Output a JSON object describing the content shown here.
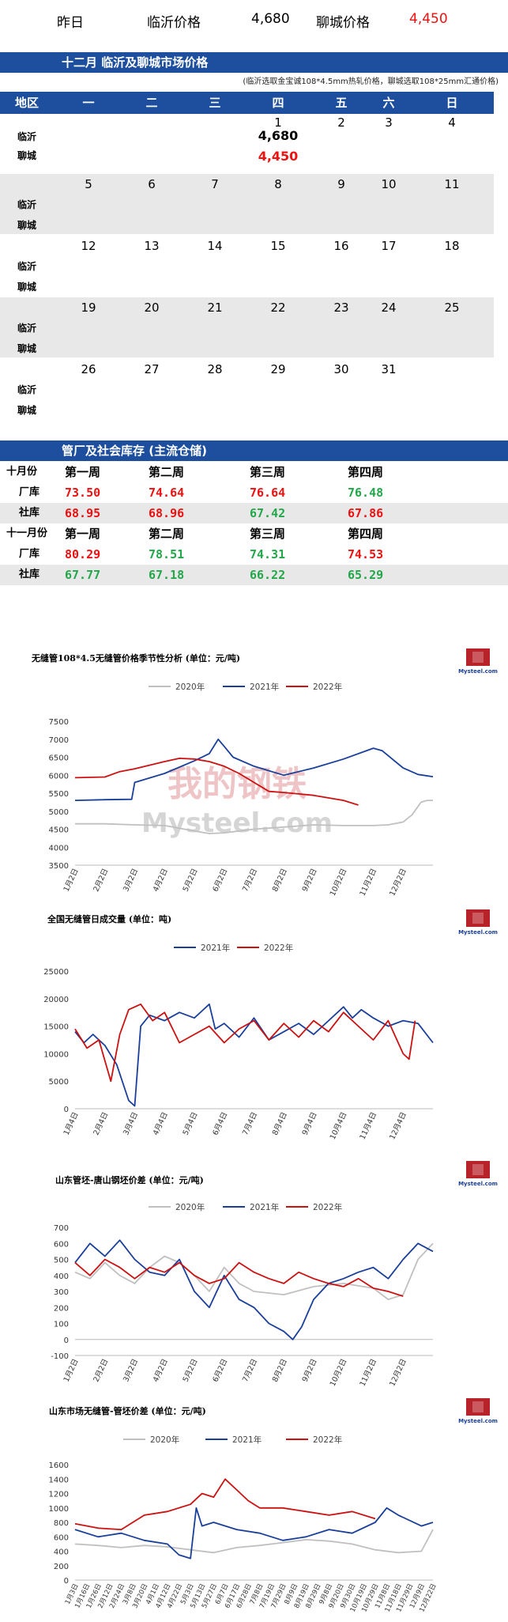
{
  "summary": {
    "yesterday_label": "昨日",
    "linyi_label": "临沂价格",
    "linyi_value": "4,680",
    "liaocheng_label": "聊城价格",
    "liaocheng_value": "4,450"
  },
  "calendar": {
    "title": "十二月  临沂及聊城市场价格",
    "note": "(临沂选取金宝诚108*4.5mm热轧价格，聊城选取108*25mm汇通价格)",
    "headers": [
      "地区",
      "一",
      "二",
      "三",
      "四",
      "五",
      "六",
      "日"
    ],
    "row_labels": [
      "临沂",
      "聊城"
    ],
    "weeks": [
      [
        "",
        "",
        "",
        "1",
        "2",
        "3",
        "4"
      ],
      [
        "5",
        "6",
        "7",
        "8",
        "9",
        "10",
        "11"
      ],
      [
        "12",
        "13",
        "14",
        "15",
        "16",
        "17",
        "18"
      ],
      [
        "19",
        "20",
        "21",
        "22",
        "23",
        "24",
        "25"
      ],
      [
        "26",
        "27",
        "28",
        "29",
        "30",
        "31",
        ""
      ]
    ],
    "prices": {
      "linyi_day1": "4,680",
      "liaocheng_day1": "4,450"
    }
  },
  "inventory": {
    "title": "管厂及社会库存 (主流仓储)",
    "rows": [
      {
        "label": "十月份",
        "cells": [
          "第一周",
          "第二周",
          "第三周",
          "第四周"
        ],
        "kind": "header"
      },
      {
        "label": "厂库",
        "cells": [
          "73.50",
          "74.64",
          "76.64",
          "76.48"
        ],
        "colors": [
          "red",
          "red",
          "red",
          "green"
        ]
      },
      {
        "label": "社库",
        "cells": [
          "68.95",
          "68.96",
          "67.42",
          "67.86"
        ],
        "colors": [
          "red",
          "red",
          "green",
          "red"
        ]
      },
      {
        "label": "十一月份",
        "cells": [
          "第一周",
          "第二周",
          "第三周",
          "第四周"
        ],
        "kind": "header"
      },
      {
        "label": "厂库",
        "cells": [
          "80.29",
          "78.51",
          "74.31",
          "74.53"
        ],
        "colors": [
          "red",
          "green",
          "green",
          "red"
        ]
      },
      {
        "label": "社库",
        "cells": [
          "67.77",
          "67.18",
          "66.22",
          "65.29"
        ],
        "colors": [
          "green",
          "green",
          "green",
          "green"
        ]
      }
    ]
  },
  "logo_text": "Mysteel.com",
  "watermark": {
    "cn": "我的钢铁",
    "en": "Mysteel.com"
  },
  "chart_data": [
    {
      "type": "line",
      "title": "无缝管108*4.5无缝管价格季节性分析 (单位：元/吨)",
      "ylim": [
        3500,
        7500
      ],
      "yticks": [
        3500,
        4000,
        4500,
        5000,
        5500,
        6000,
        6500,
        7000,
        7500
      ],
      "tick_labels": [
        "1月2日",
        "2月2日",
        "3月2日",
        "4月2日",
        "5月2日",
        "6月2日",
        "7月2日",
        "8月2日",
        "9月2日",
        "10月2日",
        "11月2日",
        "12月2日"
      ],
      "series": [
        {
          "name": "2020年",
          "color": "#c0c0c0",
          "x": [
            0,
            1,
            2,
            3,
            4,
            4.5,
            5,
            5.5,
            6,
            7,
            8,
            9,
            10,
            10.5,
            11,
            11.3,
            11.6,
            11.8,
            12
          ],
          "y": [
            4650,
            4650,
            4620,
            4600,
            4450,
            4380,
            4400,
            4450,
            4500,
            4560,
            4620,
            4600,
            4600,
            4620,
            4700,
            4900,
            5250,
            5300,
            5300
          ]
        },
        {
          "name": "2021年",
          "color": "#1a3f9a",
          "x": [
            0,
            1,
            1.9,
            2,
            3,
            4,
            4.5,
            4.8,
            5,
            5.3,
            6,
            7,
            8,
            9,
            10,
            10.3,
            11,
            11.5,
            12
          ],
          "y": [
            5300,
            5320,
            5330,
            5800,
            6050,
            6400,
            6600,
            7000,
            6800,
            6500,
            6250,
            6000,
            6200,
            6450,
            6750,
            6680,
            6200,
            6020,
            5960
          ]
        },
        {
          "name": "2022年",
          "color": "#cc1111",
          "x": [
            0,
            1,
            1.5,
            2,
            3,
            3.5,
            4,
            4.5,
            5,
            5.5,
            6,
            6.5,
            7,
            8,
            9,
            9.5
          ],
          "y": [
            5930,
            5950,
            6100,
            6180,
            6380,
            6470,
            6450,
            6380,
            6250,
            6050,
            5800,
            5550,
            5520,
            5440,
            5300,
            5170
          ]
        }
      ]
    },
    {
      "type": "line",
      "title": "全国无缝管日成交量 (单位：吨)",
      "ylim": [
        0,
        25000
      ],
      "yticks": [
        0,
        5000,
        10000,
        15000,
        20000,
        25000
      ],
      "tick_labels": [
        "1月4日",
        "2月4日",
        "3月4日",
        "4月4日",
        "5月4日",
        "6月4日",
        "7月4日",
        "8月4日",
        "9月4日",
        "10月4日",
        "11月4日",
        "12月4日"
      ],
      "series": [
        {
          "name": "2021年",
          "color": "#1a3f9a",
          "x": [
            0,
            0.3,
            0.6,
            1,
            1.4,
            1.8,
            2.0,
            2.2,
            2.5,
            3,
            3.5,
            4,
            4.5,
            4.7,
            5,
            5.5,
            6,
            6.5,
            7,
            7.5,
            8,
            8.5,
            9,
            9.3,
            9.6,
            10,
            10.5,
            11,
            11.5,
            12
          ],
          "y": [
            14000,
            12000,
            13500,
            11500,
            8000,
            1500,
            500,
            15000,
            17000,
            16000,
            17500,
            16500,
            19000,
            14500,
            15500,
            13000,
            16500,
            12500,
            14000,
            15500,
            13500,
            16000,
            18500,
            16500,
            18000,
            16500,
            15000,
            16000,
            15500,
            12000
          ]
        },
        {
          "name": "2022年",
          "color": "#cc1111",
          "x": [
            0,
            0.4,
            0.8,
            1.2,
            1.5,
            1.8,
            2.2,
            2.6,
            3,
            3.5,
            4,
            4.5,
            5,
            5.5,
            6,
            6.5,
            7,
            7.5,
            8,
            8.5,
            9,
            9.5,
            10,
            10.5,
            11,
            11.2,
            11.4
          ],
          "y": [
            14500,
            11000,
            12500,
            5000,
            13500,
            18000,
            19000,
            16000,
            17500,
            12000,
            13500,
            15000,
            12000,
            14500,
            16000,
            12500,
            15500,
            13000,
            16000,
            14000,
            17500,
            15000,
            12500,
            16000,
            10000,
            9000,
            16000
          ]
        }
      ]
    },
    {
      "type": "line",
      "title": "山东管坯-唐山钢坯价差 (单位：元/吨)",
      "ylim": [
        -100,
        700
      ],
      "yticks": [
        -100,
        0,
        100,
        200,
        300,
        400,
        500,
        600,
        700
      ],
      "tick_labels": [
        "1月2日",
        "2月2日",
        "3月2日",
        "4月2日",
        "5月2日",
        "6月2日",
        "7月2日",
        "8月2日",
        "9月2日",
        "10月2日",
        "11月2日",
        "12月2日"
      ],
      "series": [
        {
          "name": "2020年",
          "color": "#c0c0c0",
          "x": [
            0,
            0.5,
            1,
            1.5,
            2,
            2.5,
            3,
            3.5,
            4,
            4.5,
            5,
            5.5,
            6,
            7,
            8,
            9,
            10,
            10.5,
            11,
            11.5,
            12
          ],
          "y": [
            420,
            380,
            480,
            400,
            350,
            450,
            520,
            480,
            400,
            300,
            450,
            350,
            300,
            280,
            330,
            350,
            320,
            250,
            280,
            500,
            600
          ]
        },
        {
          "name": "2021年",
          "color": "#1a3f9a",
          "x": [
            0,
            0.5,
            1,
            1.5,
            2,
            2.5,
            3,
            3.5,
            4,
            4.5,
            5,
            5.5,
            6,
            6.5,
            7,
            7.3,
            7.6,
            8,
            8.5,
            9,
            9.5,
            10,
            10.5,
            11,
            11.5,
            12
          ],
          "y": [
            480,
            600,
            520,
            620,
            500,
            420,
            400,
            500,
            300,
            200,
            400,
            250,
            200,
            100,
            50,
            0,
            80,
            250,
            350,
            380,
            420,
            450,
            380,
            500,
            600,
            550
          ]
        },
        {
          "name": "2022年",
          "color": "#cc1111",
          "x": [
            0,
            0.5,
            1,
            1.5,
            2,
            2.5,
            3,
            3.5,
            4,
            4.5,
            5,
            5.5,
            6,
            6.5,
            7,
            7.5,
            8,
            8.5,
            9,
            9.5,
            10,
            10.5,
            11
          ],
          "y": [
            480,
            400,
            500,
            450,
            380,
            450,
            420,
            480,
            400,
            350,
            380,
            480,
            420,
            380,
            350,
            420,
            380,
            350,
            330,
            380,
            320,
            300,
            270
          ]
        }
      ]
    },
    {
      "type": "line",
      "title": "山东市场无缝管-管坯价差 (单位：元/吨)",
      "ylim": [
        0,
        1600
      ],
      "yticks": [
        0,
        200,
        400,
        600,
        800,
        1000,
        1200,
        1400,
        1600
      ],
      "tick_labels": [
        "1月3日",
        "1月16日",
        "1月26日",
        "2月12日",
        "2月24日",
        "3月8日",
        "3月20日",
        "4月1日",
        "4月12日",
        "4月22日",
        "5月3日",
        "5月13日",
        "5月27日",
        "6月7日",
        "6月17日",
        "6月28日",
        "7月8日",
        "7月19日",
        "7月29日",
        "8月9日",
        "8月19日",
        "8月29日",
        "9月8日",
        "9月20日",
        "9月30日",
        "10月19日",
        "10月29日",
        "11月8日",
        "11月18日",
        "11月29日",
        "12月9日",
        "12月22日"
      ],
      "series": [
        {
          "name": "2020年",
          "color": "#c0c0c0",
          "x": [
            0,
            2,
            4,
            6,
            8,
            10,
            12,
            14,
            16,
            18,
            20,
            22,
            24,
            26,
            28,
            30,
            31
          ],
          "y": [
            500,
            480,
            450,
            480,
            460,
            420,
            380,
            450,
            480,
            520,
            560,
            540,
            500,
            420,
            380,
            400,
            700
          ]
        },
        {
          "name": "2021年",
          "color": "#1a3f9a",
          "x": [
            0,
            2,
            4,
            6,
            8,
            9,
            10,
            10.5,
            11,
            12,
            14,
            16,
            18,
            20,
            22,
            24,
            26,
            27,
            28,
            30,
            31
          ],
          "y": [
            700,
            600,
            650,
            550,
            500,
            350,
            300,
            1000,
            750,
            800,
            700,
            650,
            550,
            600,
            700,
            650,
            800,
            1000,
            900,
            750,
            800
          ]
        },
        {
          "name": "2022年",
          "color": "#cc1111",
          "x": [
            0,
            2,
            4,
            6,
            8,
            10,
            11,
            12,
            13,
            14,
            15,
            16,
            18,
            20,
            22,
            24,
            26
          ],
          "y": [
            780,
            720,
            700,
            900,
            950,
            1050,
            1200,
            1150,
            1400,
            1250,
            1100,
            1000,
            1000,
            950,
            900,
            950,
            850
          ]
        }
      ]
    }
  ]
}
